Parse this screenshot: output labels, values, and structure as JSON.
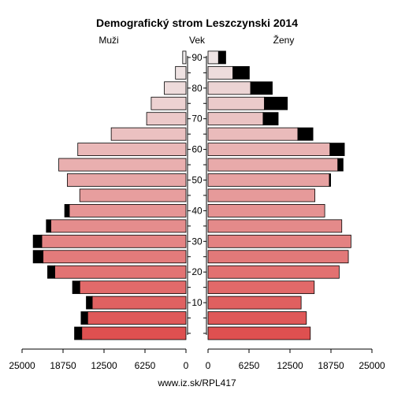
{
  "chart_data": {
    "type": "bar",
    "title": "Demografický strom Leszczynski 2014",
    "left_label": "Muži",
    "center_label": "Vek",
    "right_label": "Ženy",
    "footer": "www.iz.sk/RPL417",
    "xlim": [
      0,
      25000
    ],
    "x_ticks": [
      0,
      6250,
      12500,
      18750,
      25000
    ],
    "x_tick_labels_left": [
      "25000",
      "18750",
      "12500",
      "6250",
      "0"
    ],
    "x_tick_labels_right": [
      "0",
      "6250",
      "12500",
      "18750",
      "25000"
    ],
    "age_ticks": [
      10,
      20,
      30,
      40,
      50,
      60,
      70,
      80,
      90
    ],
    "age_groups": [
      0,
      5,
      10,
      15,
      20,
      25,
      30,
      35,
      40,
      45,
      50,
      55,
      60,
      65,
      70,
      75,
      80,
      85,
      90
    ],
    "series": [
      {
        "name": "Muži",
        "values": [
          15900,
          15000,
          14300,
          16200,
          20000,
          21800,
          22000,
          20600,
          17800,
          16200,
          18100,
          19400,
          16500,
          11400,
          6000,
          5300,
          3300,
          1600,
          500
        ],
        "excess": [
          1100,
          1000,
          900,
          1100,
          1100,
          1500,
          1300,
          700,
          700,
          0,
          0,
          0,
          0,
          0,
          0,
          0,
          0,
          0,
          0
        ]
      },
      {
        "name": "Ženy",
        "values": [
          15600,
          15000,
          14200,
          16200,
          20000,
          21400,
          21800,
          20400,
          17800,
          16300,
          18500,
          19800,
          18600,
          13700,
          8400,
          8600,
          6500,
          3800,
          1600
        ],
        "excess": [
          0,
          0,
          0,
          0,
          0,
          0,
          0,
          0,
          0,
          0,
          200,
          800,
          2200,
          2300,
          2300,
          3500,
          3300,
          2500,
          1100
        ]
      }
    ]
  }
}
